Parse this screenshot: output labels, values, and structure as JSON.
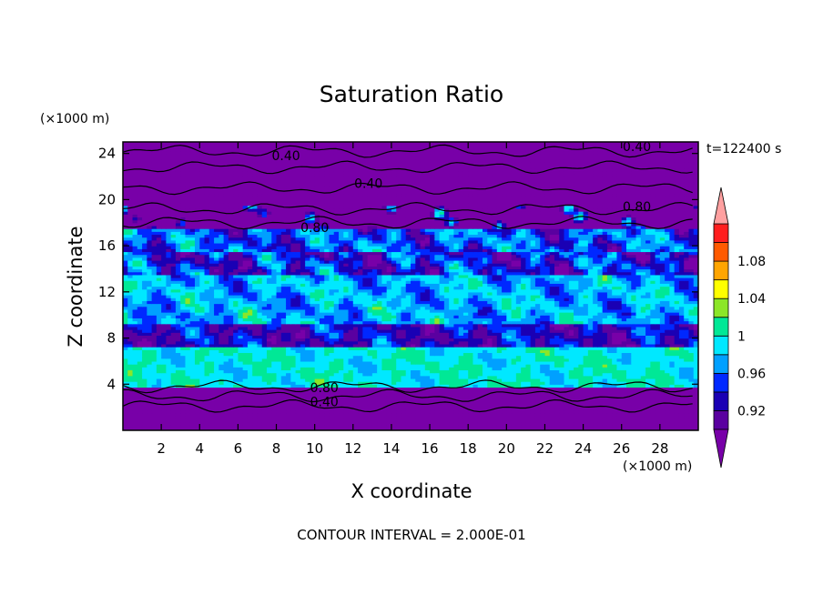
{
  "chart_data": {
    "type": "heatmap",
    "title": "Saturation Ratio",
    "xlabel": "X coordinate",
    "ylabel": "Z coordinate",
    "x_unit": "(×1000 m)",
    "y_unit": "(×1000 m)",
    "time_label": "t=122400 s",
    "footer": "CONTOUR INTERVAL = 2.000E-01",
    "xlim": [
      0,
      30
    ],
    "ylim": [
      0,
      25
    ],
    "x_ticks": [
      "2",
      "4",
      "6",
      "8",
      "10",
      "12",
      "14",
      "16",
      "18",
      "20",
      "22",
      "24",
      "26",
      "28"
    ],
    "y_ticks": [
      "4",
      "8",
      "12",
      "16",
      "20",
      "24"
    ],
    "colorbar": {
      "levels": [
        0.9,
        0.92,
        0.94,
        0.96,
        0.98,
        1.0,
        1.02,
        1.04,
        1.06,
        1.08,
        1.1
      ],
      "tick_labels": [
        "0.92",
        "0.96",
        "1",
        "1.04",
        "1.08"
      ],
      "colors": [
        "#5a00a0",
        "#1a00b4",
        "#0028ff",
        "#00a0ff",
        "#00e8ff",
        "#00e896",
        "#8ce628",
        "#ffff00",
        "#ffa500",
        "#ff5a00",
        "#ff1e1e"
      ],
      "over_color": "#ffa0a0",
      "under_color": "#7800a8"
    },
    "contour_labels": [
      {
        "text": "0.40",
        "x": 8.5,
        "z": 23.8
      },
      {
        "text": "0.40",
        "x": 12.8,
        "z": 21.4
      },
      {
        "text": "0.40",
        "x": 26.8,
        "z": 24.6
      },
      {
        "text": "0.80",
        "x": 10.0,
        "z": 17.6
      },
      {
        "text": "0.80",
        "x": 26.8,
        "z": 19.4
      },
      {
        "text": "0.80",
        "x": 10.5,
        "z": 3.7
      },
      {
        "text": "0.40",
        "x": 10.5,
        "z": 2.5
      }
    ]
  }
}
